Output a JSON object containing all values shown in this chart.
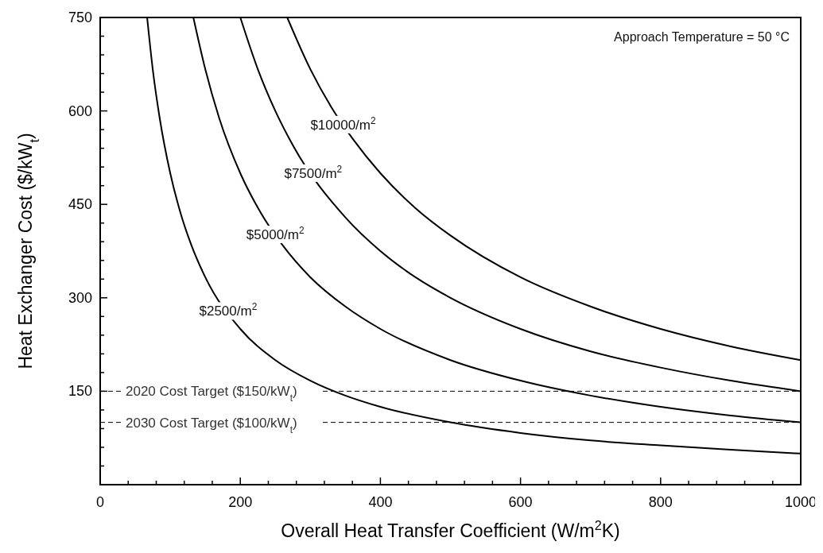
{
  "chart_data": {
    "type": "line",
    "xlabel": "Overall Heat Transfer Coefficient (W/m$^{2}$K)",
    "ylabel": "Heat Exchanger Cost ($/kW$_{t}$)",
    "xlim": [
      0,
      1000
    ],
    "ylim": [
      0,
      750
    ],
    "xticks": [
      0,
      {
        "value": 40,
        "label": null
      },
      {
        "value": 80,
        "label": null
      },
      {
        "value": 120,
        "label": null
      },
      {
        "value": 160,
        "label": null
      },
      200,
      {
        "value": 240,
        "label": null
      },
      {
        "value": 280,
        "label": null
      },
      {
        "value": 320,
        "label": null
      },
      {
        "value": 360,
        "label": null
      },
      400,
      {
        "value": 440,
        "label": null
      },
      {
        "value": 480,
        "label": null
      },
      {
        "value": 520,
        "label": null
      },
      {
        "value": 560,
        "label": null
      },
      600,
      {
        "value": 640,
        "label": null
      },
      {
        "value": 680,
        "label": null
      },
      {
        "value": 720,
        "label": null
      },
      {
        "value": 760,
        "label": null
      },
      800,
      {
        "value": 840,
        "label": null
      },
      {
        "value": 880,
        "label": null
      },
      {
        "value": 920,
        "label": null
      },
      {
        "value": 960,
        "label": null
      },
      1000
    ],
    "yticks": [
      {
        "value": 30,
        "label": null
      },
      {
        "value": 60,
        "label": null
      },
      {
        "value": 90,
        "label": null
      },
      {
        "value": 120,
        "label": null
      },
      150,
      {
        "value": 180,
        "label": null
      },
      {
        "value": 210,
        "label": null
      },
      {
        "value": 240,
        "label": null
      },
      {
        "value": 270,
        "label": null
      },
      300,
      {
        "value": 330,
        "label": null
      },
      {
        "value": 360,
        "label": null
      },
      {
        "value": 390,
        "label": null
      },
      {
        "value": 420,
        "label": null
      },
      450,
      {
        "value": 480,
        "label": null
      },
      {
        "value": 510,
        "label": null
      },
      {
        "value": 540,
        "label": null
      },
      {
        "value": 570,
        "label": null
      },
      600,
      {
        "value": 630,
        "label": null
      },
      {
        "value": 660,
        "label": null
      },
      {
        "value": 690,
        "label": null
      },
      {
        "value": 720,
        "label": null
      },
      750
    ],
    "grid": false,
    "legend": false,
    "marker": "none",
    "line_style": "solid",
    "series": [
      {
        "name": "$2500/m$^{2}$",
        "color": "#000000",
        "x": [
          67,
          75,
          85,
          100,
          115,
          130,
          150,
          200,
          250,
          300,
          350,
          400,
          500,
          600,
          700,
          800,
          900,
          1000
        ],
        "values": [
          750,
          667,
          588,
          500,
          435,
          385,
          333,
          250,
          200,
          167,
          143,
          125,
          100,
          83,
          71,
          63,
          56,
          50
        ]
      },
      {
        "name": "$5000/m$^{2}$",
        "color": "#000000",
        "x": [
          133,
          150,
          170,
          200,
          230,
          260,
          300,
          350,
          400,
          500,
          600,
          700,
          800,
          900,
          1000
        ],
        "values": [
          750,
          667,
          588,
          500,
          435,
          385,
          333,
          286,
          250,
          200,
          167,
          143,
          125,
          111,
          100
        ]
      },
      {
        "name": "$7500/m$^{2}$",
        "color": "#000000",
        "x": [
          200,
          225,
          250,
          275,
          350,
          400,
          450,
          500,
          600,
          700,
          800,
          900,
          1000
        ],
        "values": [
          750,
          667,
          600,
          545,
          429,
          375,
          333,
          300,
          250,
          214,
          188,
          167,
          150
        ]
      },
      {
        "name": "$10000/m$^{2}$",
        "color": "#000000",
        "x": [
          267,
          300,
          330,
          360,
          400,
          450,
          500,
          600,
          700,
          800,
          900,
          1000
        ],
        "values": [
          750,
          667,
          606,
          556,
          500,
          444,
          400,
          333,
          286,
          250,
          222,
          200
        ]
      }
    ],
    "ref_lines": [
      {
        "axis": "y",
        "value": 150,
        "label": "2020 Cost Target ($150/kW$_{t}$)",
        "line_style": "dashed",
        "color": "#000000"
      },
      {
        "axis": "y",
        "value": 100,
        "label": "2030 Cost Target ($100/kW$_{t}$)",
        "line_style": "dashed",
        "color": "#000000"
      }
    ],
    "annotations": [
      "Approach Temperature = 50 °C"
    ]
  }
}
